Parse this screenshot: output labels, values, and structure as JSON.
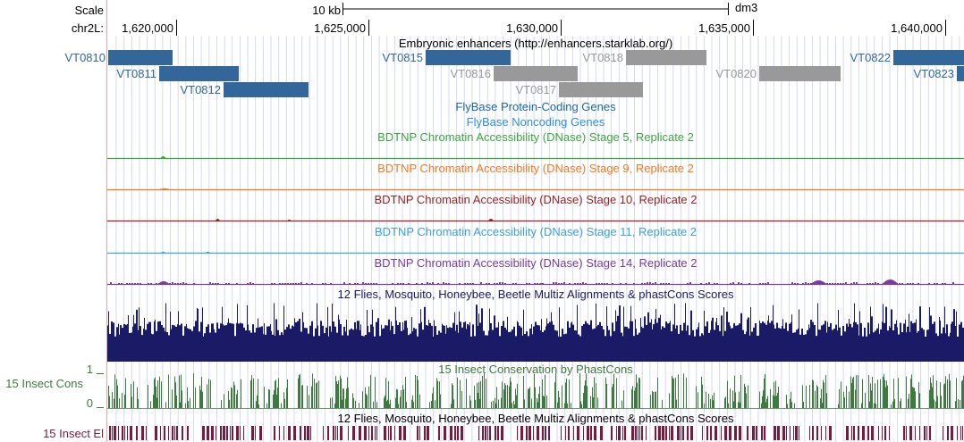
{
  "ruler": {
    "scale_label": "Scale",
    "scale_bar_label": "10 kb",
    "assembly": "dm3",
    "chrom_label": "chr2L:",
    "ticks": [
      "1,620,000",
      "1,625,000",
      "1,630,000",
      "1,635,000",
      "1,640,000"
    ]
  },
  "tracks": {
    "enhancers": {
      "title": "Embryonic enhancers (http://enhancers.starklab.org/)",
      "color_active": "#336699",
      "color_inactive": "#999999",
      "items": [
        {
          "name": "VT0810",
          "active": true
        },
        {
          "name": "VT0811",
          "active": true
        },
        {
          "name": "VT0812",
          "active": true
        },
        {
          "name": "VT0815",
          "active": true
        },
        {
          "name": "VT0816",
          "active": false
        },
        {
          "name": "VT0817",
          "active": false
        },
        {
          "name": "VT0818",
          "active": false
        },
        {
          "name": "VT0820",
          "active": false
        },
        {
          "name": "VT0822",
          "active": true
        },
        {
          "name": "VT0823",
          "active": true
        }
      ]
    },
    "protein_coding": {
      "title": "FlyBase Protein-Coding Genes",
      "color": "#1a66b3"
    },
    "noncoding": {
      "title": "FlyBase Noncoding Genes",
      "color": "#2f8fdf"
    },
    "dnase": [
      {
        "title": "BDTNP Chromatin Accessibility (DNase) Stage 5, Replicate 2",
        "color": "#3da63d"
      },
      {
        "title": "BDTNP Chromatin Accessibility (DNase) Stage 9, Replicate 2",
        "color": "#f07a1e"
      },
      {
        "title": "BDTNP Chromatin Accessibility (DNase) Stage 10, Replicate 2",
        "color": "#991f1f"
      },
      {
        "title": "BDTNP Chromatin Accessibility (DNase) Stage 11, Replicate 2",
        "color": "#3aa3d6"
      },
      {
        "title": "BDTNP Chromatin Accessibility (DNase) Stage 14, Replicate 2",
        "color": "#7a3d99"
      }
    ],
    "multiz": {
      "title": "12 Flies, Mosquito, Honeybee, Beetle Multiz Alignments & phastCons Scores",
      "color": "#1a1a66"
    },
    "cons": {
      "title": "15 Insect Conservation by PhastCons",
      "side_label": "15 Insect Cons",
      "ymax": "1",
      "ymin": "0",
      "color": "#3d7a3d"
    },
    "elements": {
      "title": "12 Flies, Mosquito, Honeybee, Beetle Multiz Alignments & phastCons Scores",
      "side_label": "15 Insect El",
      "color": "#7a1a3d"
    }
  }
}
